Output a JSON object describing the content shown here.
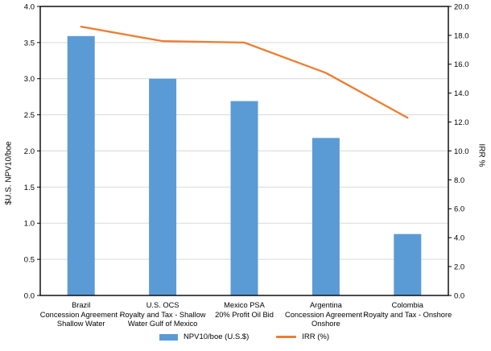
{
  "chart_data": {
    "type": "bar",
    "subtype": "bar-line-combo",
    "title": "",
    "categories": [
      "Brazil\nConcession Agreement -\nShallow Water",
      "U.S. OCS\nRoyalty and Tax - Shallow\nWater Gulf of Mexico",
      "Mexico PSA\n20% Profit Oil Bid",
      "Argentina\nConcession Agreement -\nOnshore",
      "Colombia\nRoyalty and Tax - Onshore"
    ],
    "series": [
      {
        "name": "NPV10/boe (U.S.$)",
        "render": "bar",
        "axis": "left",
        "color": "#5B9BD5",
        "values": [
          3.59,
          3.0,
          2.69,
          2.18,
          0.85
        ]
      },
      {
        "name": "IRR (%)",
        "render": "line",
        "axis": "right",
        "color": "#ED7D31",
        "values": [
          18.6,
          17.6,
          17.5,
          15.4,
          12.3
        ]
      }
    ],
    "left_axis": {
      "title": "$U.S. NPV10/boe",
      "min": 0.0,
      "max": 4.0,
      "step": 0.5,
      "ticks": [
        "0.0",
        "0.5",
        "1.0",
        "1.5",
        "2.0",
        "2.5",
        "3.0",
        "3.5",
        "4.0"
      ]
    },
    "right_axis": {
      "title": "IRR %",
      "min": 0.0,
      "max": 20.0,
      "step": 2.0,
      "ticks": [
        "0.0",
        "2.0",
        "4.0",
        "6.0",
        "8.0",
        "10.0",
        "12.0",
        "14.0",
        "16.0",
        "18.0",
        "20.0"
      ]
    },
    "grid": true,
    "gridline_color": "#d9d9d9",
    "axis_color": "#000000",
    "legend_position": "bottom",
    "legend": [
      {
        "label": "NPV10/boe (U.S.$)",
        "swatch": "rect",
        "color": "#5B9BD5"
      },
      {
        "label": "IRR (%)",
        "swatch": "line",
        "color": "#ED7D31"
      }
    ]
  }
}
